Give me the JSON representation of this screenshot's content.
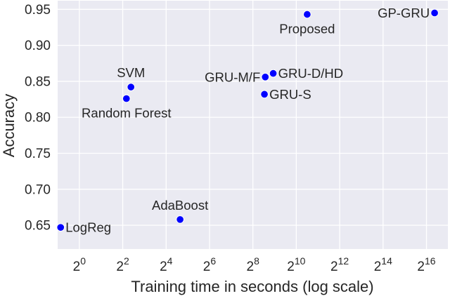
{
  "chart_data": {
    "type": "scatter",
    "title": "",
    "xlabel": "Training time in seconds (log scale)",
    "ylabel": "Accuracy",
    "x_scale": "log2",
    "xlim": [
      0.5,
      130000
    ],
    "ylim": [
      0.617,
      0.962
    ],
    "grid": true,
    "background": "#EAEAF2",
    "marker_color": "#0000FF",
    "x_ticks": [
      {
        "value": 1,
        "base": "2",
        "exp": "0"
      },
      {
        "value": 4,
        "base": "2",
        "exp": "2"
      },
      {
        "value": 16,
        "base": "2",
        "exp": "4"
      },
      {
        "value": 64,
        "base": "2",
        "exp": "6"
      },
      {
        "value": 256,
        "base": "2",
        "exp": "8"
      },
      {
        "value": 1024,
        "base": "2",
        "exp": "10"
      },
      {
        "value": 4096,
        "base": "2",
        "exp": "12"
      },
      {
        "value": 16384,
        "base": "2",
        "exp": "14"
      },
      {
        "value": 65536,
        "base": "2",
        "exp": "16"
      }
    ],
    "y_ticks": [
      {
        "value": 0.65,
        "label": "0.65"
      },
      {
        "value": 0.7,
        "label": "0.70"
      },
      {
        "value": 0.75,
        "label": "0.75"
      },
      {
        "value": 0.8,
        "label": "0.80"
      },
      {
        "value": 0.85,
        "label": "0.85"
      },
      {
        "value": 0.9,
        "label": "0.90"
      },
      {
        "value": 0.95,
        "label": "0.95"
      }
    ],
    "points": [
      {
        "name": "LogReg",
        "x": 0.55,
        "y": 0.647,
        "label_pos": "right"
      },
      {
        "name": "Random Forest",
        "x": 4.5,
        "y": 0.826,
        "label_pos": "below"
      },
      {
        "name": "SVM",
        "x": 5.2,
        "y": 0.842,
        "label_pos": "above"
      },
      {
        "name": "AdaBoost",
        "x": 25,
        "y": 0.658,
        "label_pos": "above"
      },
      {
        "name": "GRU-S",
        "x": 370,
        "y": 0.832,
        "label_pos": "right"
      },
      {
        "name": "GRU-M/F",
        "x": 380,
        "y": 0.856,
        "label_pos": "left"
      },
      {
        "name": "GRU-D/HD",
        "x": 490,
        "y": 0.861,
        "label_pos": "right"
      },
      {
        "name": "Proposed",
        "x": 1450,
        "y": 0.943,
        "label_pos": "below"
      },
      {
        "name": "GP-GRU",
        "x": 85000,
        "y": 0.945,
        "label_pos": "left"
      }
    ]
  }
}
